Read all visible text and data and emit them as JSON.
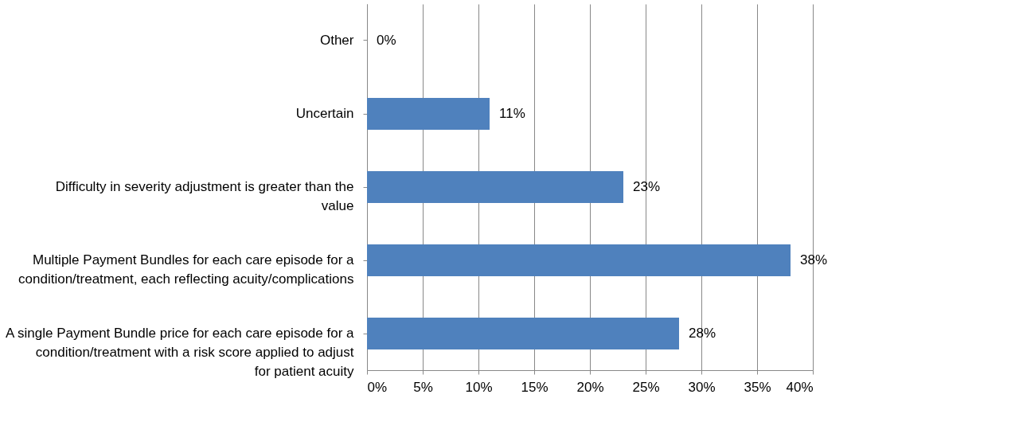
{
  "chart_data": {
    "type": "bar",
    "orientation": "horizontal",
    "categories": [
      "Other",
      "Uncertain",
      "Difficulty in severity adjustment is greater than the value",
      "Multiple Payment Bundles for each care episode for a condition/treatment, each reflecting acuity/complications",
      "A single Payment Bundle price for each care episode for a condition/treatment with a risk score applied to adjust for patient acuity"
    ],
    "values": [
      0,
      11,
      23,
      38,
      28
    ],
    "color": "#4f81bd",
    "xlim": [
      0,
      40
    ],
    "xticks": [
      {
        "value": 0,
        "label": "0%"
      },
      {
        "value": 5,
        "label": "5%"
      },
      {
        "value": 10,
        "label": "10%"
      },
      {
        "value": 15,
        "label": "15%"
      },
      {
        "value": 20,
        "label": "20%"
      },
      {
        "value": 25,
        "label": "25%"
      },
      {
        "value": 30,
        "label": "30%"
      },
      {
        "value": 35,
        "label": "35%"
      },
      {
        "value": 40,
        "label": "40%"
      }
    ],
    "value_labels": [
      "0%",
      "11%",
      "23%",
      "38%",
      "28%"
    ],
    "grid": "x"
  }
}
